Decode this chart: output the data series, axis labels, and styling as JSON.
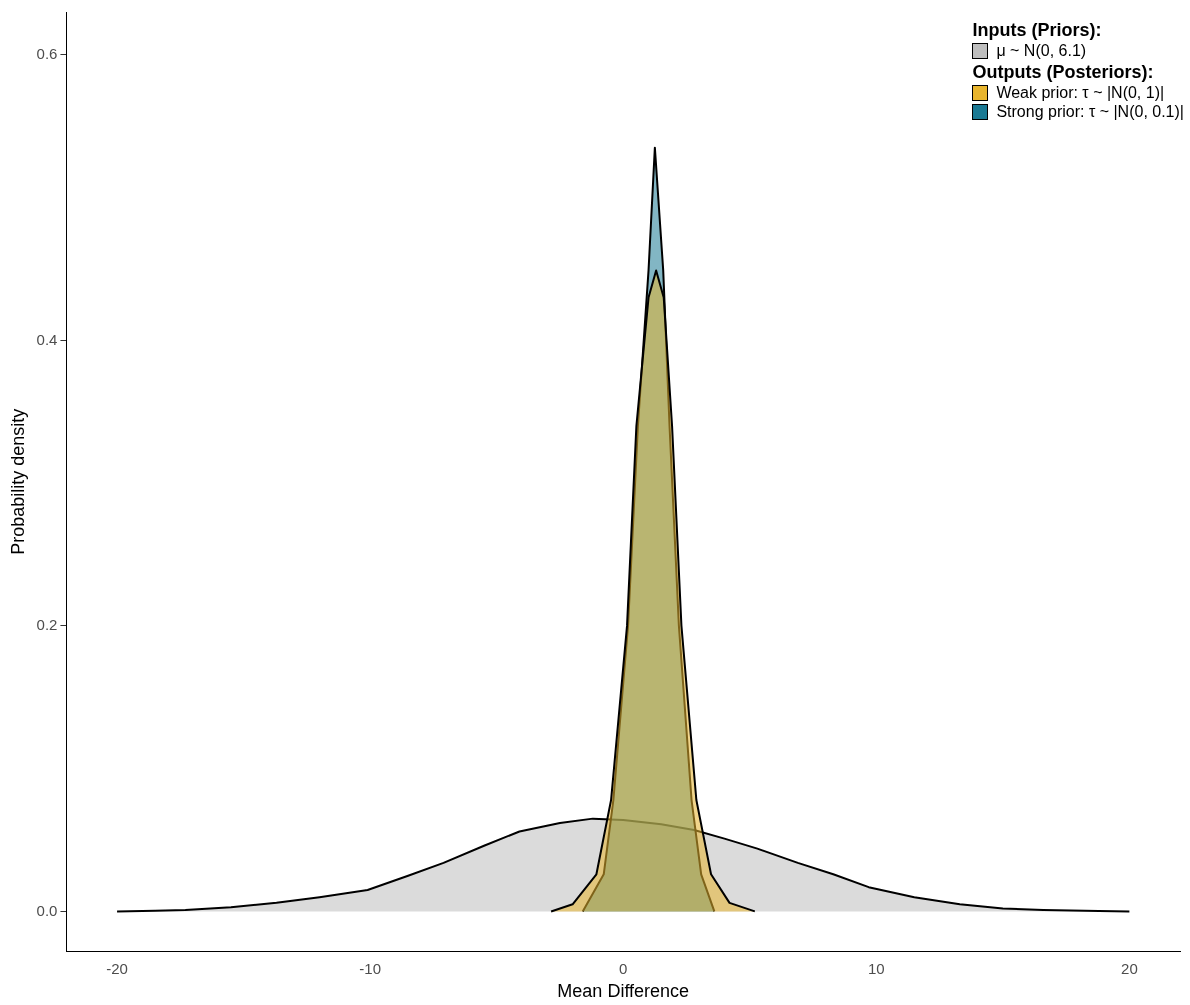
{
  "chart_data": {
    "type": "area",
    "xlabel": "Mean Difference",
    "ylabel": "Probability density",
    "legend_title": "Inputs (Priors):",
    "annotations": [
      "Outputs (Posteriors):"
    ],
    "legend": "top right",
    "grid": false,
    "marker": "none",
    "line_style": "solid",
    "xlim": [
      -22,
      22
    ],
    "xticks": [
      -20,
      -10,
      0,
      10,
      20
    ],
    "ylim": [
      -0.028,
      0.63
    ],
    "yticks": [
      {
        "value": 0,
        "label": "0.0"
      },
      {
        "value": 0.2,
        "label": "0.2"
      },
      {
        "value": 0.4,
        "label": "0.4"
      },
      {
        "value": 0.6,
        "label": "0.6"
      }
    ],
    "series": [
      {
        "name": "μ ~ N(0, 6.1)",
        "color": "#bebebe",
        "x": [
          -20,
          -18.5,
          -17.3,
          -15.5,
          -13.7,
          -12,
          -10.1,
          -8.5,
          -7.1,
          -5.5,
          -4.1,
          -2.5,
          -1.2,
          0,
          1.5,
          2.8,
          4,
          5.3,
          6.9,
          8.3,
          9.7,
          11.5,
          13.3,
          15,
          16.6,
          18.8,
          20
        ],
        "values": [
          0,
          0.0005,
          0.001,
          0.003,
          0.006,
          0.01,
          0.015,
          0.025,
          0.034,
          0.046,
          0.056,
          0.062,
          0.065,
          0.064,
          0.061,
          0.057,
          0.051,
          0.044,
          0.034,
          0.026,
          0.017,
          0.01,
          0.005,
          0.002,
          0.001,
          0.0003,
          0
        ]
      },
      {
        "name": "Weak prior: τ ~ |N(0, 1)|",
        "color": "#e8b52e",
        "x": [
          -2.85,
          -2,
          -1.06,
          -0.48,
          0.15,
          0.52,
          1,
          1.3,
          1.6,
          1.93,
          2.3,
          2.89,
          3.47,
          4.2,
          5.2
        ],
        "values": [
          0,
          0.005,
          0.026,
          0.078,
          0.2,
          0.34,
          0.43,
          0.449,
          0.43,
          0.34,
          0.2,
          0.078,
          0.026,
          0.006,
          0
        ]
      },
      {
        "name": "Strong prior: τ ~ |N(0, 0.1)|",
        "color": "#1b7a94",
        "x": [
          -1.6,
          -0.77,
          -0.39,
          0.19,
          0.58,
          1,
          1.25,
          1.58,
          1.83,
          2.2,
          2.7,
          3.08,
          3.6
        ],
        "values": [
          0,
          0.026,
          0.078,
          0.2,
          0.34,
          0.449,
          0.535,
          0.449,
          0.34,
          0.2,
          0.078,
          0.026,
          0
        ]
      }
    ]
  }
}
